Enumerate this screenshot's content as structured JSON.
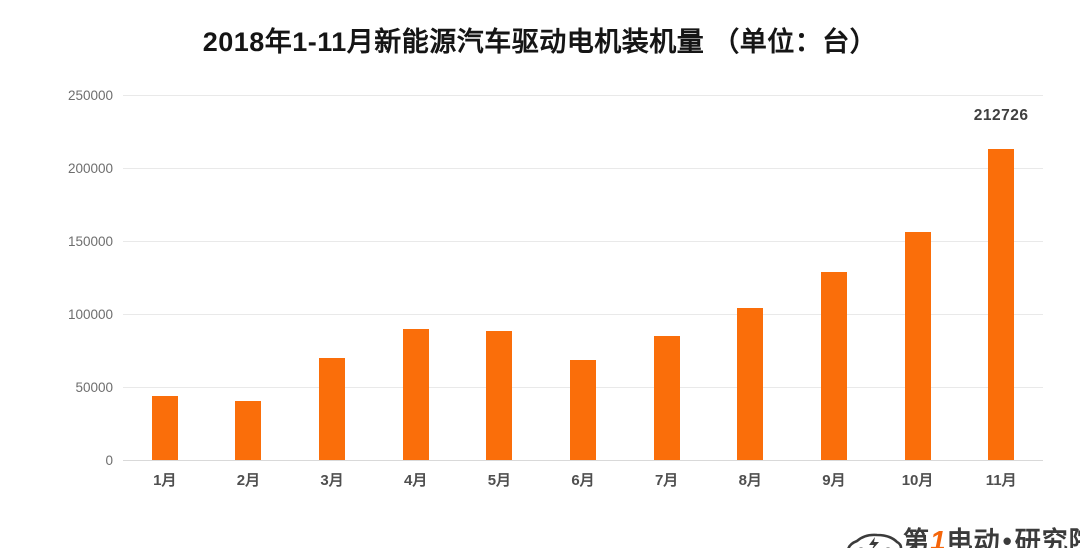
{
  "title": "2018年1-11月新能源汽车驱动电机装机量 （单位：台）",
  "chart_data": {
    "type": "bar",
    "title": "2018年1-11月新能源汽车驱动电机装机量 （单位：台）",
    "unit": "台",
    "categories": [
      "1月",
      "2月",
      "3月",
      "4月",
      "5月",
      "6月",
      "7月",
      "8月",
      "9月",
      "10月",
      "11月"
    ],
    "values": [
      44000,
      40500,
      70000,
      90000,
      88500,
      68500,
      85000,
      104000,
      129000,
      156000,
      212726
    ],
    "value_labels": [
      "",
      "",
      "",
      "",
      "",
      "",
      "",
      "",
      "",
      "",
      "212726"
    ],
    "xlabel": "",
    "ylabel": "",
    "ylim": [
      0,
      250000
    ],
    "yticks": [
      0,
      50000,
      100000,
      150000,
      200000,
      250000
    ],
    "ytick_labels": [
      "0",
      "50000",
      "100000",
      "150000",
      "200000",
      "250000"
    ],
    "grid": true,
    "legend": false,
    "bar_color": "#fa6e0a"
  },
  "watermark": {
    "icon": "electric-car-icon",
    "brand_prefix": "第",
    "brand_accent": "1",
    "brand_suffix": "电动",
    "separator": "•",
    "brand_unit": "研究院",
    "dark_color": "#3b3b3b",
    "accent_color": "#f5650a"
  }
}
